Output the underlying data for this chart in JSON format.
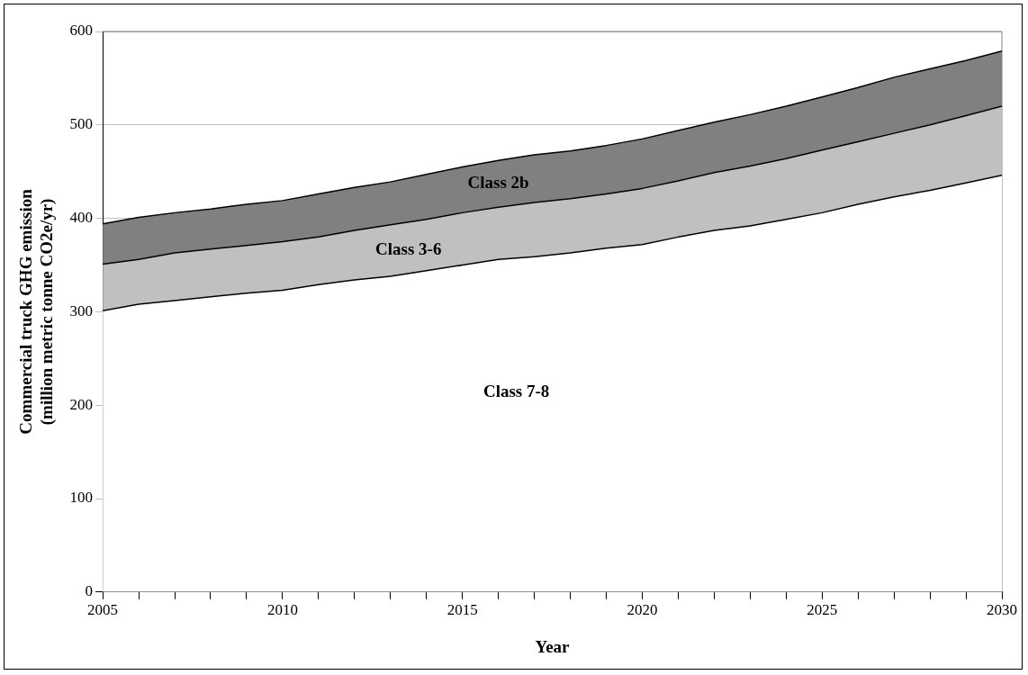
{
  "chart_data": {
    "type": "area",
    "stacked": true,
    "xlabel": "Year",
    "ylabel": "Commercial truck GHG emission\n(million metric tonne CO2e/yr)",
    "x": [
      2005,
      2006,
      2007,
      2008,
      2009,
      2010,
      2011,
      2012,
      2013,
      2014,
      2015,
      2016,
      2017,
      2018,
      2019,
      2020,
      2021,
      2022,
      2023,
      2024,
      2025,
      2026,
      2027,
      2028,
      2029,
      2030
    ],
    "series": [
      {
        "name": "Class 7-8",
        "color": "#ffffff",
        "values": [
          301,
          308,
          312,
          316,
          320,
          323,
          329,
          334,
          338,
          344,
          350,
          356,
          359,
          363,
          368,
          372,
          380,
          387,
          392,
          399,
          406,
          415,
          423,
          430,
          438,
          446
        ]
      },
      {
        "name": "Class 3-6",
        "color": "#c0c0c0",
        "values": [
          50,
          48,
          51,
          51,
          51,
          52,
          51,
          53,
          55,
          55,
          56,
          56,
          58,
          58,
          58,
          60,
          60,
          62,
          64,
          65,
          67,
          67,
          68,
          70,
          72,
          74
        ]
      },
      {
        "name": "Class 2b",
        "color": "#808080",
        "values": [
          43,
          45,
          43,
          43,
          44,
          44,
          46,
          46,
          46,
          48,
          49,
          50,
          51,
          51,
          52,
          53,
          54,
          54,
          55,
          56,
          57,
          58,
          60,
          60,
          59,
          59
        ]
      }
    ],
    "xlim": [
      2005,
      2030
    ],
    "xticks": [
      2005,
      {
        "value": 2006,
        "label": null
      },
      {
        "value": 2007,
        "label": null
      },
      {
        "value": 2008,
        "label": null
      },
      {
        "value": 2009,
        "label": null
      },
      2010,
      {
        "value": 2011,
        "label": null
      },
      {
        "value": 2012,
        "label": null
      },
      {
        "value": 2013,
        "label": null
      },
      {
        "value": 2014,
        "label": null
      },
      2015,
      {
        "value": 2016,
        "label": null
      },
      {
        "value": 2017,
        "label": null
      },
      {
        "value": 2018,
        "label": null
      },
      {
        "value": 2019,
        "label": null
      },
      2020,
      {
        "value": 2021,
        "label": null
      },
      {
        "value": 2022,
        "label": null
      },
      {
        "value": 2023,
        "label": null
      },
      {
        "value": 2024,
        "label": null
      },
      2025,
      {
        "value": 2026,
        "label": null
      },
      {
        "value": 2027,
        "label": null
      },
      {
        "value": 2028,
        "label": null
      },
      {
        "value": 2029,
        "label": null
      },
      2030
    ],
    "ylim": [
      0,
      600
    ],
    "yticks": [
      0,
      100,
      200,
      300,
      400,
      500,
      600
    ],
    "grid": "y",
    "legend": false
  }
}
